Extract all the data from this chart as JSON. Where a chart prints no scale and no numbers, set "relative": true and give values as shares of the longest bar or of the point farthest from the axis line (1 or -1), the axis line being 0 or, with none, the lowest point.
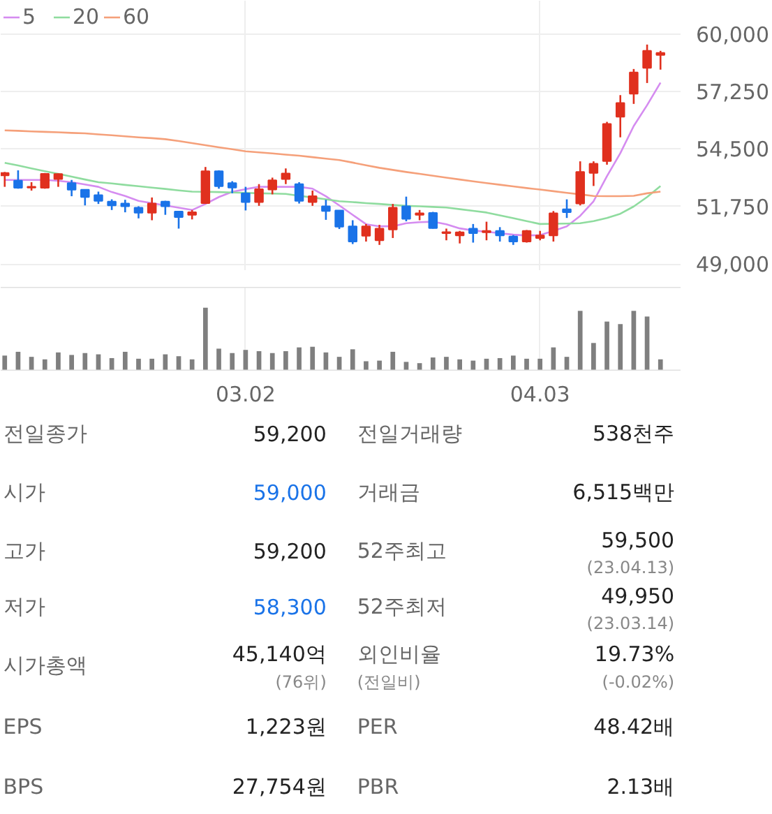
{
  "chart_data": [
    {
      "type": "candlestick",
      "categories": [
        null,
        null,
        null,
        null,
        null,
        null,
        null,
        null,
        null,
        null,
        null,
        null,
        null,
        null,
        null,
        null,
        null,
        null,
        "03.02",
        null,
        null,
        null,
        null,
        null,
        null,
        null,
        null,
        null,
        null,
        null,
        null,
        null,
        null,
        null,
        null,
        null,
        null,
        null,
        null,
        null,
        "04.03",
        null,
        null,
        null,
        null,
        null,
        null,
        null,
        null,
        null
      ],
      "ohlc": [
        [
          53240,
          53400,
          52690,
          53350
        ],
        [
          52990,
          53480,
          52600,
          52640
        ],
        [
          52650,
          52910,
          52510,
          52690
        ],
        [
          52640,
          53350,
          52600,
          53310
        ],
        [
          53060,
          53330,
          52690,
          53300
        ],
        [
          52870,
          53020,
          52240,
          52550
        ],
        [
          52550,
          52550,
          51800,
          52200
        ],
        [
          52290,
          52460,
          51870,
          52020
        ],
        [
          51980,
          52090,
          51580,
          51800
        ],
        [
          51890,
          52070,
          51470,
          51760
        ],
        [
          51690,
          51760,
          51180,
          51450
        ],
        [
          51450,
          52180,
          51090,
          51890
        ],
        [
          51980,
          52020,
          51350,
          51760
        ],
        [
          51510,
          51510,
          50690,
          51240
        ],
        [
          51350,
          51580,
          51130,
          51470
        ],
        [
          51910,
          53640,
          51870,
          53440
        ],
        [
          53440,
          53480,
          52600,
          52720
        ],
        [
          52870,
          52960,
          52380,
          52650
        ],
        [
          52380,
          52690,
          51560,
          51960
        ],
        [
          51960,
          52820,
          51780,
          52580
        ],
        [
          52560,
          53130,
          52330,
          53000
        ],
        [
          53060,
          53570,
          52820,
          53330
        ],
        [
          52820,
          52910,
          51890,
          52020
        ],
        [
          51960,
          52510,
          51780,
          52240
        ],
        [
          51760,
          52070,
          51110,
          51530
        ],
        [
          51560,
          51560,
          50670,
          50780
        ],
        [
          50800,
          51090,
          49950,
          50070
        ],
        [
          50350,
          50910,
          50070,
          50800
        ],
        [
          50130,
          50870,
          49910,
          50690
        ],
        [
          50650,
          51870,
          50240,
          51690
        ],
        [
          51760,
          52220,
          51040,
          51160
        ],
        [
          51350,
          51580,
          51090,
          51420
        ],
        [
          51440,
          51490,
          50690,
          50710
        ],
        [
          50470,
          50690,
          50130,
          50520
        ],
        [
          50360,
          50580,
          49980,
          50510
        ],
        [
          50690,
          50910,
          50020,
          50470
        ],
        [
          50510,
          51020,
          50130,
          50580
        ],
        [
          50580,
          50760,
          50070,
          50360
        ],
        [
          50310,
          50380,
          49910,
          50070
        ],
        [
          50070,
          50620,
          50020,
          50580
        ],
        [
          50240,
          50580,
          50130,
          50360
        ],
        [
          50360,
          51530,
          50070,
          51420
        ],
        [
          51620,
          52090,
          51200,
          51470
        ],
        [
          51890,
          53910,
          51800,
          53400
        ],
        [
          53350,
          53910,
          52730,
          53800
        ],
        [
          53920,
          55800,
          53750,
          55700
        ],
        [
          56040,
          57080,
          55060,
          56700
        ],
        [
          57150,
          58330,
          56660,
          58170
        ],
        [
          58380,
          59500,
          57660,
          59200
        ],
        [
          59000,
          59200,
          58300,
          59100
        ]
      ],
      "colors": [
        "#e0301e",
        "#1a73e8",
        "#e0301e",
        "#e0301e",
        "#e0301e",
        "#1a73e8",
        "#1a73e8",
        "#1a73e8",
        "#1a73e8",
        "#1a73e8",
        "#1a73e8",
        "#e0301e",
        "#1a73e8",
        "#1a73e8",
        "#e0301e",
        "#e0301e",
        "#1a73e8",
        "#1a73e8",
        "#1a73e8",
        "#e0301e",
        "#e0301e",
        "#e0301e",
        "#1a73e8",
        "#e0301e",
        "#1a73e8",
        "#1a73e8",
        "#1a73e8",
        "#e0301e",
        "#e0301e",
        "#e0301e",
        "#1a73e8",
        "#e0301e",
        "#1a73e8",
        "#e0301e",
        "#e0301e",
        "#1a73e8",
        "#e0301e",
        "#1a73e8",
        "#1a73e8",
        "#e0301e",
        "#e0301e",
        "#e0301e",
        "#1a73e8",
        "#e0301e",
        "#e0301e",
        "#e0301e",
        "#e0301e",
        "#e0301e",
        "#e0301e",
        "#e0301e"
      ],
      "series": [
        {
          "name": "5",
          "type": "line",
          "color": "#d58cf0",
          "values": [
            53020,
            53020,
            53020,
            53020,
            52980,
            52910,
            52800,
            52690,
            52440,
            52250,
            52020,
            51910,
            51800,
            51690,
            51580,
            51870,
            52200,
            52450,
            52580,
            52690,
            52690,
            52690,
            52690,
            52600,
            52240,
            51800,
            51350,
            50900,
            50800,
            50800,
            50950,
            51000,
            51020,
            50900,
            50700,
            50600,
            50540,
            50470,
            50400,
            50360,
            50380,
            50580,
            50800,
            51300,
            52000,
            53200,
            54300,
            55600,
            56600,
            57680
          ]
        },
        {
          "name": "20",
          "type": "line",
          "color": "#8fdc9f",
          "values": [
            53840,
            53710,
            53570,
            53440,
            53310,
            53180,
            53040,
            52910,
            52850,
            52780,
            52720,
            52650,
            52590,
            52520,
            52460,
            52450,
            52440,
            52420,
            52400,
            52380,
            52370,
            52350,
            52260,
            52180,
            52090,
            52000,
            51960,
            51910,
            51870,
            51820,
            51780,
            51760,
            51730,
            51700,
            51620,
            51540,
            51460,
            51320,
            51190,
            51050,
            50910,
            50920,
            50930,
            50950,
            51050,
            51200,
            51400,
            51750,
            52200,
            52730
          ]
        },
        {
          "name": "60",
          "type": "line",
          "color": "#f5a07a",
          "values": [
            55390,
            55370,
            55340,
            55320,
            55300,
            55270,
            55250,
            55200,
            55160,
            55110,
            55060,
            55020,
            54970,
            54880,
            54780,
            54680,
            54580,
            54490,
            54390,
            54340,
            54290,
            54230,
            54180,
            54110,
            54040,
            53970,
            53850,
            53720,
            53600,
            53500,
            53400,
            53310,
            53220,
            53130,
            53040,
            52950,
            52870,
            52790,
            52710,
            52630,
            52560,
            52480,
            52400,
            52330,
            52250,
            52240,
            52240,
            52260,
            52380,
            52460
          ]
        }
      ],
      "ylim": [
        48700,
        61600
      ],
      "yticks": [
        {
          "value": 49000,
          "label": "49,000"
        },
        {
          "value": 51750,
          "label": "51,750"
        },
        {
          "value": 54500,
          "label": "54,500"
        },
        {
          "value": 57250,
          "label": "57,250"
        },
        {
          "value": 60000,
          "label": "60,000"
        }
      ],
      "grid": true,
      "legend": "top left",
      "tick_labels": "y"
    },
    {
      "type": "bar",
      "relative": true,
      "color": "#7f7f7f",
      "categories": [
        null,
        null,
        null,
        null,
        null,
        null,
        null,
        null,
        null,
        null,
        null,
        null,
        null,
        null,
        null,
        null,
        null,
        null,
        "03.02",
        null,
        null,
        null,
        null,
        null,
        null,
        null,
        null,
        null,
        null,
        null,
        null,
        null,
        null,
        null,
        null,
        null,
        null,
        null,
        null,
        null,
        "04.03",
        null,
        null,
        null,
        null,
        null,
        null,
        null,
        null,
        null
      ],
      "values": [
        0.24,
        0.3,
        0.22,
        0.18,
        0.29,
        0.25,
        0.28,
        0.26,
        0.2,
        0.3,
        0.19,
        0.19,
        0.26,
        0.23,
        0.18,
        1,
        0.35,
        0.28,
        0.33,
        0.31,
        0.28,
        0.31,
        0.37,
        0.38,
        0.29,
        0.22,
        0.34,
        0.15,
        0.16,
        0.3,
        0.14,
        0.12,
        0.21,
        0.22,
        0.18,
        0.16,
        0.19,
        0.2,
        0.24,
        0.19,
        0.19,
        0.37,
        0.22,
        0.95,
        0.44,
        0.78,
        0.74,
        0.95,
        0.86,
        0.18
      ],
      "grid": "x",
      "tick_labels": "x"
    },
    {
      "type": "other",
      "annotations": [
        "전일종가",
        "59,200",
        "전일거래량",
        "538천주",
        "시가",
        "59,000",
        "거래금",
        "6,515백만",
        "고가",
        "59,200",
        "52주최고",
        "59,500",
        "(23.04.13)",
        "저가",
        "58,300",
        "52주최저",
        "49,950",
        "(23.03.14)",
        "시가총액",
        "45,140억",
        "(76위)",
        "외인비율",
        "(전일비)",
        "19.73%",
        "(-0.02%)",
        "EPS",
        "1,223원",
        "PER",
        "48.42배",
        "BPS",
        "27,754원",
        "PBR",
        "2.13배"
      ],
      "colors": [
        "#666666",
        "#222222",
        "#666666",
        "#222222",
        "#666666",
        "#1a73e8",
        "#666666",
        "#222222",
        "#666666",
        "#222222",
        "#666666",
        "#222222",
        "#888888",
        "#666666",
        "#1a73e8",
        "#666666",
        "#222222",
        "#888888",
        "#666666",
        "#222222",
        "#888888",
        "#666666",
        "#888888",
        "#222222",
        "#888888",
        "#666666",
        "#222222",
        "#666666",
        "#222222",
        "#666666",
        "#222222",
        "#666666",
        "#222222"
      ]
    }
  ]
}
